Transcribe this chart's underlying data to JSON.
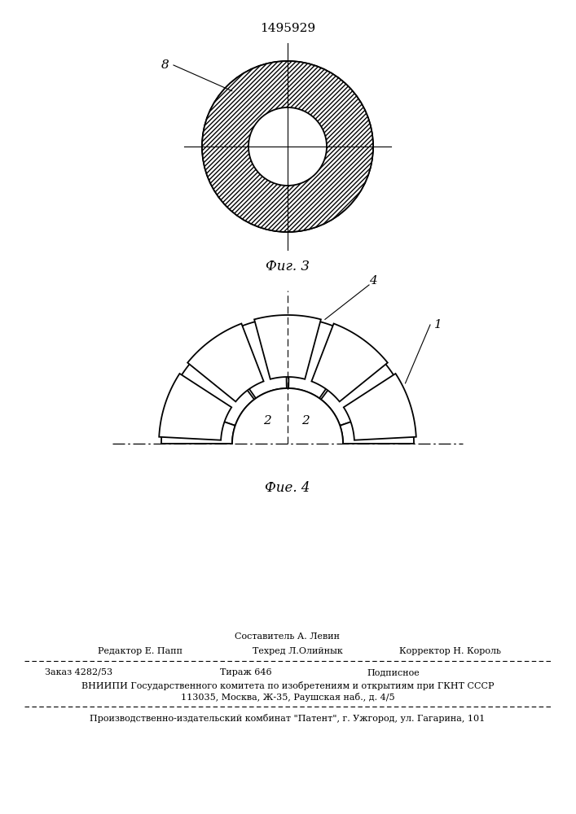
{
  "patent_number": "1495929",
  "fig3_label": "Фиг. 3",
  "fig4_label": "Фие. 4",
  "label_8": "8",
  "label_4": "4",
  "label_1": "1",
  "label_2a": "2",
  "label_2b": "2",
  "bg_color": "#ffffff",
  "line_color": "#000000",
  "footer_line1": "Составитель А. Левин",
  "footer_line2_left": "Редактор Е. Папп",
  "footer_line2_mid": "Техред Л.Олийнык",
  "footer_line2_right": "Корректор Н. Король",
  "footer_line3_left": "Заказ 4282/53",
  "footer_line3_mid": "Тираж 646",
  "footer_line3_right": "Подписное",
  "footer_line4": "ВНИИПИ Государственного комитета по изобретениям и открытиям при ГКНТ СССР",
  "footer_line5": "113035, Москва, Ж-35, Раушская наб., д. 4/5",
  "footer_line6": "Производственно-издательский комбинат \"Патент\", г. Ужгород, ул. Гагарина, 101"
}
